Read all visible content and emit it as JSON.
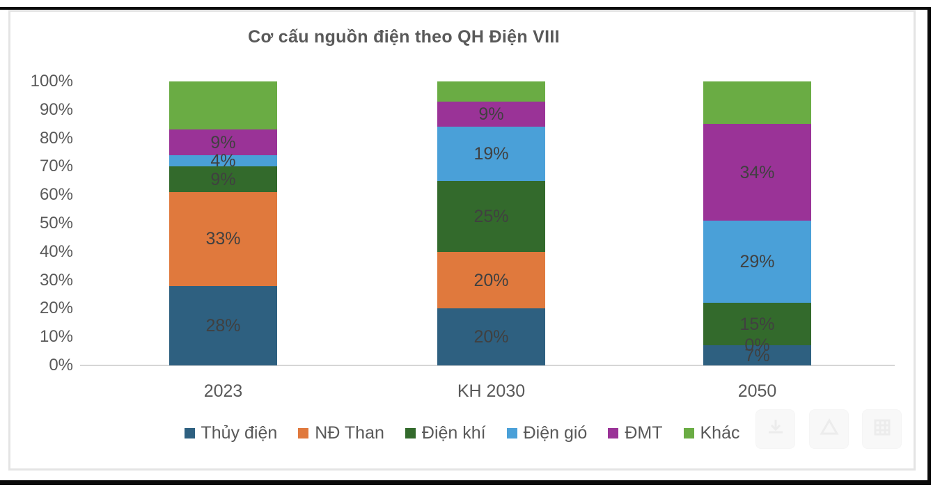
{
  "chart_data": {
    "type": "bar",
    "stacked_percent": true,
    "title": "Cơ cấu nguồn điện theo QH Điện VIII",
    "categories": [
      "2023",
      "KH 2030",
      "2050"
    ],
    "series": [
      {
        "name": "Thủy điện",
        "color": "#2E6080",
        "values": [
          28,
          20,
          7
        ],
        "data_labels": [
          "28%",
          "20%",
          "7%"
        ]
      },
      {
        "name": "NĐ Than",
        "color": "#E0793D",
        "values": [
          33,
          20,
          0
        ],
        "data_labels": [
          "33%",
          "20%",
          "0%"
        ]
      },
      {
        "name": "Điện khí",
        "color": "#336A2C",
        "values": [
          9,
          25,
          15
        ],
        "data_labels": [
          "9%",
          "25%",
          "15%"
        ]
      },
      {
        "name": "Điện gió",
        "color": "#4AA0D8",
        "values": [
          4,
          19,
          29
        ],
        "data_labels": [
          "4%",
          "19%",
          "29%"
        ]
      },
      {
        "name": "ĐMT",
        "color": "#9A3397",
        "values": [
          9,
          9,
          34
        ],
        "data_labels": [
          "9%",
          "9%",
          "34%"
        ]
      },
      {
        "name": "Khác",
        "color": "#6AAC44",
        "values": [
          17,
          7,
          15
        ],
        "data_labels": [
          "",
          "",
          ""
        ]
      }
    ],
    "y_axis": {
      "min": 0,
      "max": 100,
      "ticks": [
        "100%",
        "90%",
        "80%",
        "70%",
        "60%",
        "50%",
        "40%",
        "30%",
        "20%",
        "10%",
        "0%"
      ]
    },
    "gridlines": false,
    "legend_position": "bottom",
    "label_color": "#404040",
    "axis_text_color": "#595959",
    "axis_line_color": "#D6D6D6"
  },
  "overlay_buttons": [
    {
      "icon": "download-icon"
    },
    {
      "icon": "triangle-icon"
    },
    {
      "icon": "grid-icon"
    }
  ]
}
